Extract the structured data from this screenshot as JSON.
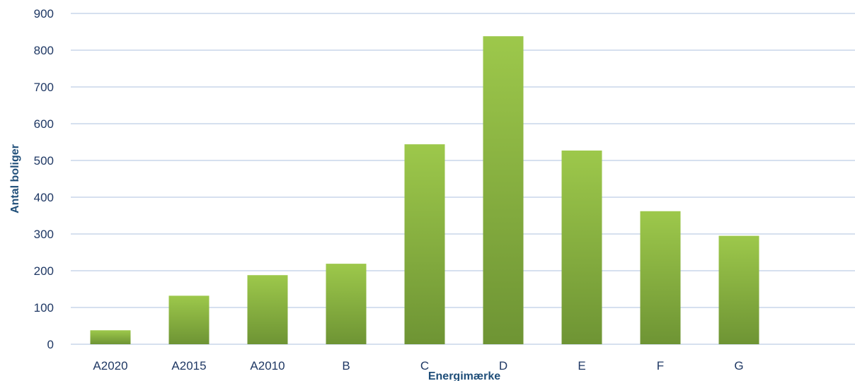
{
  "chart_data": {
    "type": "bar",
    "title": "",
    "xlabel": "Energimærke",
    "ylabel": "Antal boliger",
    "categories": [
      "A2020",
      "A2015",
      "A2010",
      "B",
      "C",
      "D",
      "E",
      "F",
      "G"
    ],
    "values": [
      38,
      132,
      188,
      219,
      544,
      838,
      527,
      362,
      295
    ],
    "ylim": [
      0,
      900
    ],
    "yticks": [
      0,
      100,
      200,
      300,
      400,
      500,
      600,
      700,
      800,
      900
    ],
    "grid": true,
    "legend": "none",
    "colors": {
      "bar_top": "#9dc84b",
      "bar_bottom": "#6e9434",
      "grid": "#c9d6ea",
      "tick_text": "#1f3864",
      "axis_title": "#1f4e79"
    }
  }
}
